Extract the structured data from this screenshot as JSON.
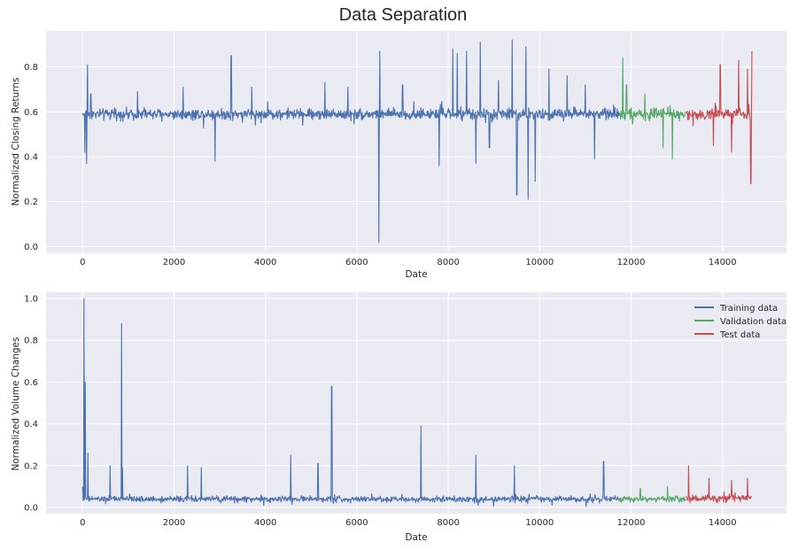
{
  "title": "Data Separation",
  "colors": {
    "training": "#4c72b0",
    "validation": "#55a868",
    "test": "#c44e52",
    "panel_bg": "#eaeaf2",
    "grid": "#ffffff"
  },
  "chart_data": [
    {
      "type": "line",
      "xlabel": "Date",
      "ylabel": "Normalized Closing Returns",
      "xlim": [
        -800,
        15400
      ],
      "ylim": [
        -0.03,
        0.96
      ],
      "xticks": [
        0,
        2000,
        4000,
        6000,
        8000,
        10000,
        12000,
        14000
      ],
      "yticks": [
        0.0,
        0.2,
        0.4,
        0.6,
        0.8
      ],
      "ytick_labels": [
        "0.0",
        "0.2",
        "0.4",
        "0.6",
        "0.8"
      ],
      "grid": true,
      "legend": "none",
      "series": [
        {
          "key": "training",
          "x_range": [
            0,
            11750
          ],
          "baseline": 0.59,
          "band": 0.035,
          "spikes": [
            [
              50,
              0.42
            ],
            [
              90,
              0.37
            ],
            [
              110,
              0.81
            ],
            [
              180,
              0.68
            ],
            [
              1200,
              0.69
            ],
            [
              2200,
              0.71
            ],
            [
              2900,
              0.38
            ],
            [
              3250,
              0.85
            ],
            [
              3700,
              0.71
            ],
            [
              5300,
              0.73
            ],
            [
              5800,
              0.71
            ],
            [
              6480,
              0.02
            ],
            [
              6500,
              0.87
            ],
            [
              7000,
              0.72
            ],
            [
              7800,
              0.36
            ],
            [
              8100,
              0.88
            ],
            [
              8200,
              0.86
            ],
            [
              8400,
              0.87
            ],
            [
              8600,
              0.37
            ],
            [
              8700,
              0.91
            ],
            [
              8900,
              0.44
            ],
            [
              9100,
              0.74
            ],
            [
              9400,
              0.92
            ],
            [
              9500,
              0.23
            ],
            [
              9700,
              0.89
            ],
            [
              9750,
              0.21
            ],
            [
              9900,
              0.29
            ],
            [
              10200,
              0.79
            ],
            [
              10600,
              0.76
            ],
            [
              11000,
              0.72
            ],
            [
              11200,
              0.39
            ]
          ]
        },
        {
          "key": "validation",
          "x_range": [
            11750,
            13200
          ],
          "baseline": 0.59,
          "band": 0.035,
          "spikes": [
            [
              11820,
              0.84
            ],
            [
              11900,
              0.72
            ],
            [
              12300,
              0.68
            ],
            [
              12700,
              0.44
            ],
            [
              12900,
              0.39
            ]
          ]
        },
        {
          "key": "test",
          "x_range": [
            13200,
            14650
          ],
          "baseline": 0.59,
          "band": 0.04,
          "spikes": [
            [
              13800,
              0.45
            ],
            [
              13950,
              0.81
            ],
            [
              14200,
              0.42
            ],
            [
              14350,
              0.83
            ],
            [
              14550,
              0.79
            ],
            [
              14620,
              0.28
            ],
            [
              14640,
              0.87
            ]
          ]
        }
      ]
    },
    {
      "type": "line",
      "xlabel": "Date",
      "ylabel": "Normalized Volume Changes",
      "xlim": [
        -800,
        15400
      ],
      "ylim": [
        -0.03,
        1.03
      ],
      "xticks": [
        0,
        2000,
        4000,
        6000,
        8000,
        10000,
        12000,
        14000
      ],
      "yticks": [
        0.0,
        0.2,
        0.4,
        0.6,
        0.8,
        1.0
      ],
      "ytick_labels": [
        "0.0",
        "0.2",
        "0.4",
        "0.6",
        "0.8",
        "1.0"
      ],
      "grid": true,
      "legend": "top-right",
      "legend_entries": [
        "Training data",
        "Validation data",
        "Test data"
      ],
      "series": [
        {
          "key": "training",
          "x_range": [
            0,
            11750
          ],
          "baseline": 0.04,
          "band": 0.02,
          "spikes": [
            [
              0,
              0.1
            ],
            [
              30,
              1.0
            ],
            [
              60,
              0.6
            ],
            [
              120,
              0.26
            ],
            [
              600,
              0.2
            ],
            [
              850,
              0.88
            ],
            [
              870,
              0.19
            ],
            [
              2300,
              0.2
            ],
            [
              2600,
              0.19
            ],
            [
              4550,
              0.25
            ],
            [
              5150,
              0.21
            ],
            [
              5450,
              0.58
            ],
            [
              7400,
              0.39
            ],
            [
              8600,
              0.25
            ],
            [
              9450,
              0.2
            ],
            [
              11400,
              0.22
            ]
          ]
        },
        {
          "key": "validation",
          "x_range": [
            11750,
            13200
          ],
          "baseline": 0.04,
          "band": 0.02,
          "spikes": [
            [
              12200,
              0.09
            ],
            [
              12800,
              0.1
            ]
          ]
        },
        {
          "key": "test",
          "x_range": [
            13200,
            14650
          ],
          "baseline": 0.045,
          "band": 0.025,
          "spikes": [
            [
              13260,
              0.2
            ],
            [
              13700,
              0.14
            ],
            [
              14200,
              0.13
            ],
            [
              14550,
              0.14
            ]
          ]
        }
      ]
    }
  ]
}
